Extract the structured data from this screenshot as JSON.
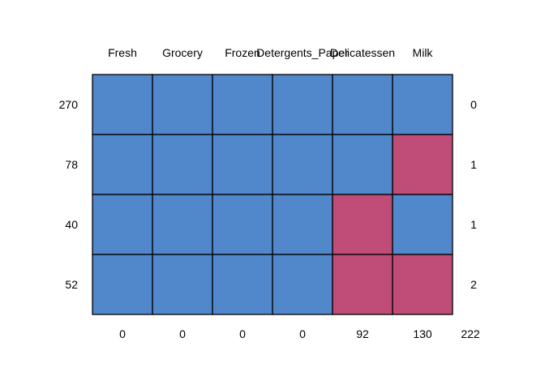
{
  "chart_data": {
    "type": "heatmap",
    "title": "",
    "xlabel": "",
    "ylabel": "",
    "columns": [
      "Fresh",
      "Grocery",
      "Frozen",
      "Detergents_Paper",
      "Delicatessen",
      "Milk"
    ],
    "rows": [
      {
        "count": "270",
        "cells": [
          0,
          0,
          0,
          0,
          0,
          0
        ],
        "missing_per_row": "0"
      },
      {
        "count": "78",
        "cells": [
          0,
          0,
          0,
          0,
          0,
          1
        ],
        "missing_per_row": "1"
      },
      {
        "count": "40",
        "cells": [
          0,
          0,
          0,
          0,
          1,
          0
        ],
        "missing_per_row": "1"
      },
      {
        "count": "52",
        "cells": [
          0,
          0,
          0,
          0,
          1,
          1
        ],
        "missing_per_row": "2"
      }
    ],
    "column_missing_totals": [
      "0",
      "0",
      "0",
      "0",
      "92",
      "130"
    ],
    "grand_total": "222",
    "colors": {
      "observed": "#5088CB",
      "missing": "#C04C78",
      "border": "#000000"
    }
  }
}
